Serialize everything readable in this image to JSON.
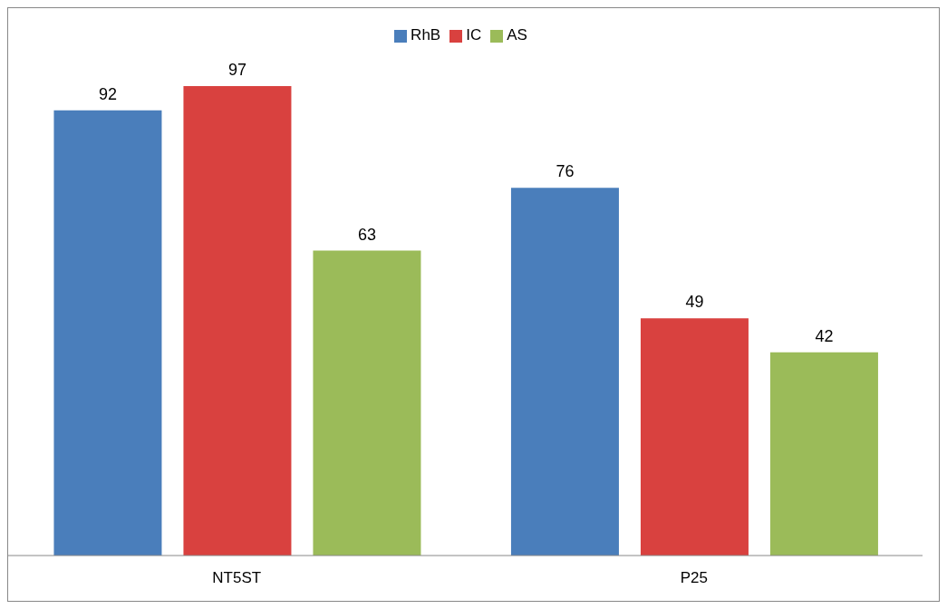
{
  "chart_data": {
    "type": "bar",
    "categories": [
      "NT5ST",
      "P25"
    ],
    "series": [
      {
        "name": "RhB",
        "color": "#4a7ebb",
        "values": [
          92,
          76
        ]
      },
      {
        "name": "IC",
        "color": "#d9413f",
        "values": [
          97,
          49
        ]
      },
      {
        "name": "AS",
        "color": "#9bbb59",
        "values": [
          63,
          42
        ]
      }
    ],
    "data_labels": true,
    "legend": "top",
    "grid": false
  }
}
